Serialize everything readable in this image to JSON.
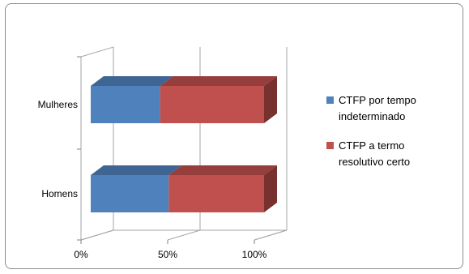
{
  "chart_data": {
    "type": "bar",
    "orientation": "horizontal",
    "stacked": "percent",
    "three_d": true,
    "categories": [
      "Mulheres",
      "Homens"
    ],
    "series": [
      {
        "name": "CTFP por tempo indeterminado",
        "values": [
          40,
          45
        ],
        "color": "#4f81bd"
      },
      {
        "name": "CTFP a termo resolutivo certo",
        "values": [
          60,
          55
        ],
        "color": "#c0504d"
      }
    ],
    "xlim": [
      0,
      100
    ],
    "x_ticks": [
      "0%",
      "50%",
      "100%"
    ],
    "grid": true,
    "legend_position": "right"
  }
}
